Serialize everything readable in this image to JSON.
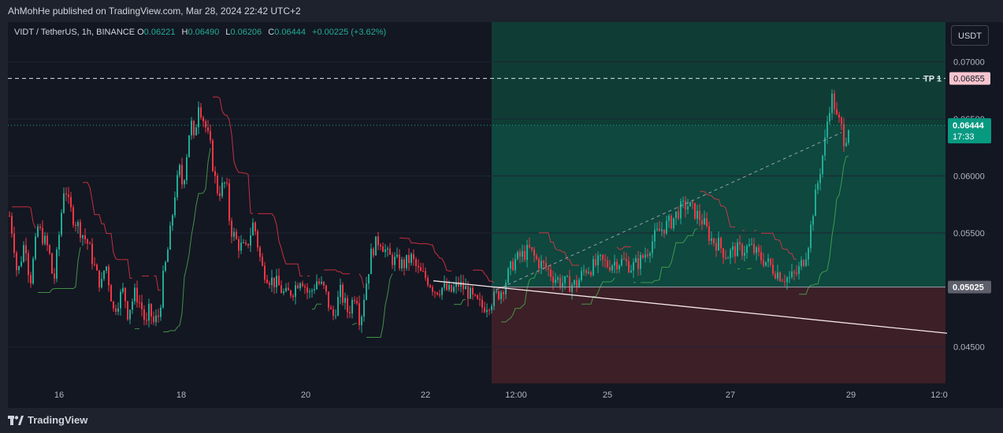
{
  "header": {
    "published": "AhMohHe published on TradingView.com, Mar 28, 2024 22:42 UTC+2"
  },
  "legend": {
    "symbol": "VIDT / TetherUS, 1h, BINANCE",
    "open_label": "O",
    "open": "0.06221",
    "high_label": "H",
    "high": "0.06490",
    "low_label": "L",
    "low": "0.06206",
    "close_label": "C",
    "close": "0.06444",
    "change": "+0.00225 (+3.62%)"
  },
  "currency_button": "USDT",
  "footer": {
    "brand": "TradingView"
  },
  "colors": {
    "up": "#22ab94",
    "down": "#f23645",
    "profit_zone": "#0f3d36",
    "loss_zone": "#3d1f27",
    "tp_label_bg": "#f7c5cf",
    "current_label_bg": "#089981"
  },
  "icons": [
    "tradingview-logo-icon"
  ],
  "chart_data": {
    "type": "candlestick",
    "y_ticks": [
      "0.07000",
      "0.06500",
      "0.06000",
      "0.05500",
      "0.04500"
    ],
    "ylim": [
      0.0418,
      0.0735
    ],
    "x_ticks": [
      "16",
      "18",
      "20",
      "22",
      "12:00",
      "25",
      "27",
      "29",
      "12:0"
    ],
    "price_labels": {
      "tp_text": "TP 1",
      "tp_value": "0.06855",
      "current_value": "0.06444",
      "countdown": "17:33",
      "entry_value": "0.05025"
    },
    "levels": {
      "tp": 0.06855,
      "current": 0.06444,
      "entry": 0.05025
    },
    "candle_anchors_x": [
      0,
      5,
      10,
      20,
      26,
      30,
      36,
      50,
      56,
      61,
      70,
      75,
      80,
      100,
      112,
      117,
      122,
      132,
      141,
      145,
      150,
      160,
      170,
      173,
      178,
      182,
      190,
      195,
      200,
      205,
      210,
      216,
      220,
      230,
      235,
      239,
      250,
      255,
      260,
      265,
      275,
      280,
      290,
      300,
      310,
      320,
      330,
      340,
      350,
      360,
      370,
      380,
      390,
      400,
      410,
      420,
      430,
      440,
      445,
      450,
      460,
      470,
      480,
      490,
      500,
      510,
      520,
      530,
      540,
      550,
      560,
      570,
      580,
      590,
      600,
      607,
      615,
      625,
      640,
      650,
      660,
      670,
      680,
      690,
      700,
      710,
      720,
      730,
      740,
      750,
      760,
      770,
      780,
      790,
      800,
      810,
      820,
      830,
      840,
      850,
      860,
      870,
      880,
      890,
      900,
      910,
      920,
      930,
      940,
      950,
      960,
      970,
      980,
      990,
      1000,
      1010,
      1015,
      1020,
      1025,
      1030,
      1035,
      1040,
      1045,
      1050,
      1055,
      1060,
      1065
    ],
    "candle_anchors_close": [
      0.0565,
      0.0545,
      0.0512,
      0.0545,
      0.0505,
      0.0525,
      0.0555,
      0.0535,
      0.0505,
      0.0535,
      0.0595,
      0.0575,
      0.0565,
      0.054,
      0.051,
      0.0505,
      0.0525,
      0.0482,
      0.0495,
      0.05,
      0.048,
      0.0498,
      0.048,
      0.0465,
      0.0485,
      0.047,
      0.0478,
      0.051,
      0.053,
      0.0555,
      0.0585,
      0.0605,
      0.059,
      0.065,
      0.0625,
      0.0668,
      0.064,
      0.0625,
      0.06,
      0.0585,
      0.0595,
      0.0555,
      0.054,
      0.0535,
      0.056,
      0.052,
      0.051,
      0.0505,
      0.0495,
      0.05,
      0.0512,
      0.0495,
      0.0508,
      0.05,
      0.0475,
      0.0498,
      0.048,
      0.05,
      0.047,
      0.0495,
      0.0535,
      0.0545,
      0.053,
      0.0525,
      0.0522,
      0.0528,
      0.0515,
      0.051,
      0.05,
      0.0502,
      0.0498,
      0.0505,
      0.05,
      0.049,
      0.0485,
      0.0488,
      0.0493,
      0.05,
      0.0525,
      0.053,
      0.0535,
      0.0525,
      0.052,
      0.0512,
      0.0507,
      0.0505,
      0.0505,
      0.0518,
      0.052,
      0.0525,
      0.0522,
      0.0525,
      0.0525,
      0.052,
      0.0525,
      0.0535,
      0.0548,
      0.0555,
      0.056,
      0.057,
      0.0575,
      0.0568,
      0.056,
      0.0545,
      0.054,
      0.053,
      0.0535,
      0.0535,
      0.0538,
      0.053,
      0.0525,
      0.0518,
      0.0512,
      0.051,
      0.0515,
      0.053,
      0.0545,
      0.057,
      0.059,
      0.061,
      0.063,
      0.066,
      0.067,
      0.065,
      0.0645,
      0.063,
      0.0644
    ]
  }
}
